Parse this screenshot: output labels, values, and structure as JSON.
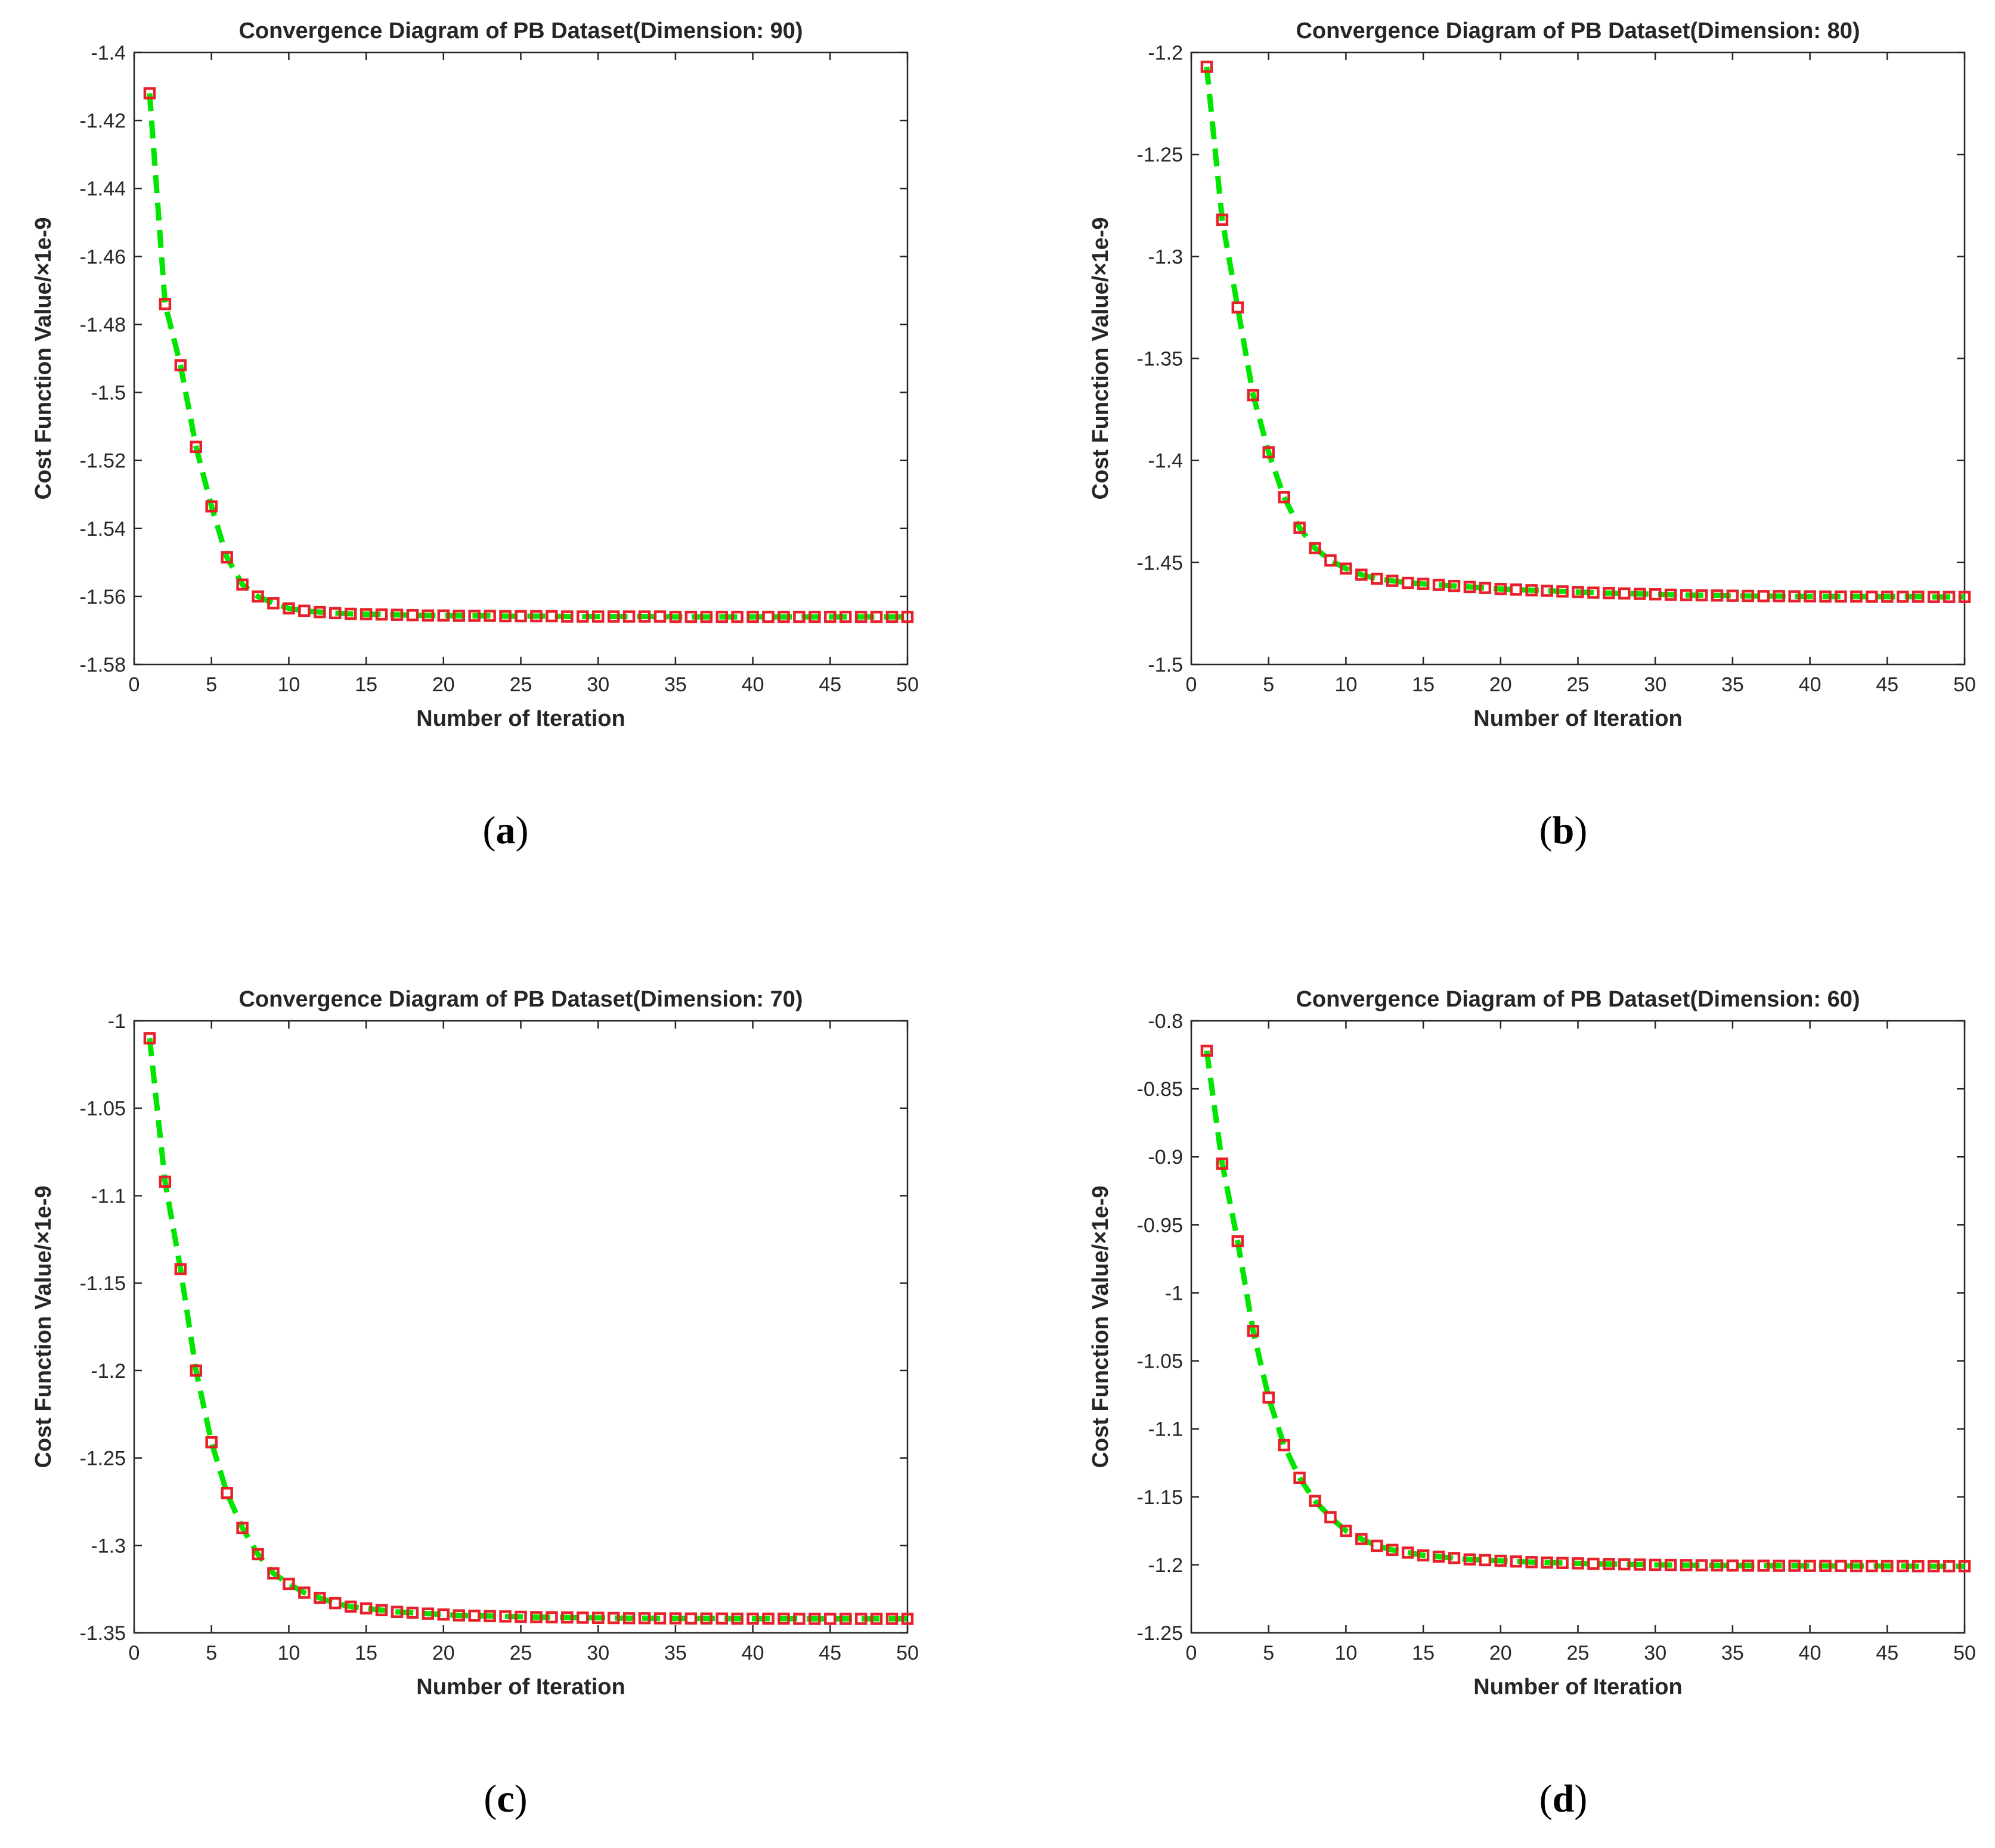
{
  "chart_data": [
    {
      "type": "line",
      "panel": "a",
      "caption_letter": "a",
      "title": "Convergence Diagram of PB Dataset(Dimension: 90)",
      "xlabel": "Number of Iteration",
      "ylabel": "Cost Function Value/×1e-9",
      "xlim": [
        0,
        50
      ],
      "ylim": [
        -1.58,
        -1.4
      ],
      "xticks": [
        0,
        5,
        10,
        15,
        20,
        25,
        30,
        35,
        40,
        45,
        50
      ],
      "yticks": [
        -1.58,
        -1.56,
        -1.54,
        -1.52,
        -1.5,
        -1.48,
        -1.46,
        -1.44,
        -1.42,
        -1.4
      ],
      "x": [
        1,
        2,
        3,
        4,
        5,
        6,
        7,
        8,
        9,
        10,
        11,
        12,
        13,
        14,
        15,
        16,
        17,
        18,
        19,
        20,
        21,
        22,
        23,
        24,
        25,
        26,
        27,
        28,
        29,
        30,
        31,
        32,
        33,
        34,
        35,
        36,
        37,
        38,
        39,
        40,
        41,
        42,
        43,
        44,
        45,
        46,
        47,
        48,
        49,
        50
      ],
      "y": [
        -1.412,
        -1.474,
        -1.492,
        -1.516,
        -1.5335,
        -1.5485,
        -1.5565,
        -1.56,
        -1.562,
        -1.5635,
        -1.5642,
        -1.5646,
        -1.5649,
        -1.5651,
        -1.5652,
        -1.5653,
        -1.5654,
        -1.5655,
        -1.5656,
        -1.5656,
        -1.5657,
        -1.5657,
        -1.5657,
        -1.5658,
        -1.5658,
        -1.5658,
        -1.5658,
        -1.5659,
        -1.5659,
        -1.5659,
        -1.5659,
        -1.5659,
        -1.5659,
        -1.5659,
        -1.566,
        -1.566,
        -1.566,
        -1.566,
        -1.566,
        -1.566,
        -1.566,
        -1.566,
        -1.566,
        -1.566,
        -1.566,
        -1.566,
        -1.566,
        -1.566,
        -1.566,
        -1.566
      ]
    },
    {
      "type": "line",
      "panel": "b",
      "caption_letter": "b",
      "title": "Convergence Diagram of PB Dataset(Dimension: 80)",
      "xlabel": "Number of Iteration",
      "ylabel": "Cost Function Value/×1e-9",
      "xlim": [
        0,
        50
      ],
      "ylim": [
        -1.5,
        -1.2
      ],
      "xticks": [
        0,
        5,
        10,
        15,
        20,
        25,
        30,
        35,
        40,
        45,
        50
      ],
      "yticks": [
        -1.5,
        -1.45,
        -1.4,
        -1.35,
        -1.3,
        -1.25,
        -1.2
      ],
      "x": [
        1,
        2,
        3,
        4,
        5,
        6,
        7,
        8,
        9,
        10,
        11,
        12,
        13,
        14,
        15,
        16,
        17,
        18,
        19,
        20,
        21,
        22,
        23,
        24,
        25,
        26,
        27,
        28,
        29,
        30,
        31,
        32,
        33,
        34,
        35,
        36,
        37,
        38,
        39,
        40,
        41,
        42,
        43,
        44,
        45,
        46,
        47,
        48,
        49,
        50
      ],
      "y": [
        -1.207,
        -1.282,
        -1.325,
        -1.368,
        -1.396,
        -1.418,
        -1.433,
        -1.443,
        -1.449,
        -1.453,
        -1.456,
        -1.458,
        -1.459,
        -1.46,
        -1.4605,
        -1.461,
        -1.4615,
        -1.462,
        -1.4625,
        -1.463,
        -1.4633,
        -1.4636,
        -1.4639,
        -1.4642,
        -1.4645,
        -1.4648,
        -1.465,
        -1.4652,
        -1.4654,
        -1.4656,
        -1.4658,
        -1.466,
        -1.4661,
        -1.4662,
        -1.4663,
        -1.4664,
        -1.4665,
        -1.4665,
        -1.4666,
        -1.4666,
        -1.4667,
        -1.4667,
        -1.4667,
        -1.4668,
        -1.4668,
        -1.4668,
        -1.4668,
        -1.4669,
        -1.4669,
        -1.4669
      ]
    },
    {
      "type": "line",
      "panel": "c",
      "caption_letter": "c",
      "title": "Convergence Diagram of PB Dataset(Dimension: 70)",
      "xlabel": "Number of Iteration",
      "ylabel": "Cost Function Value/×1e-9",
      "xlim": [
        0,
        50
      ],
      "ylim": [
        -1.35,
        -1.0
      ],
      "xticks": [
        0,
        5,
        10,
        15,
        20,
        25,
        30,
        35,
        40,
        45,
        50
      ],
      "yticks": [
        -1.35,
        -1.3,
        -1.25,
        -1.2,
        -1.15,
        -1.1,
        -1.05,
        -1
      ],
      "x": [
        1,
        2,
        3,
        4,
        5,
        6,
        7,
        8,
        9,
        10,
        11,
        12,
        13,
        14,
        15,
        16,
        17,
        18,
        19,
        20,
        21,
        22,
        23,
        24,
        25,
        26,
        27,
        28,
        29,
        30,
        31,
        32,
        33,
        34,
        35,
        36,
        37,
        38,
        39,
        40,
        41,
        42,
        43,
        44,
        45,
        46,
        47,
        48,
        49,
        50
      ],
      "y": [
        -1.01,
        -1.092,
        -1.142,
        -1.2,
        -1.241,
        -1.27,
        -1.29,
        -1.305,
        -1.316,
        -1.322,
        -1.327,
        -1.33,
        -1.333,
        -1.335,
        -1.336,
        -1.337,
        -1.338,
        -1.3385,
        -1.339,
        -1.3395,
        -1.34,
        -1.3402,
        -1.3404,
        -1.3406,
        -1.3408,
        -1.341,
        -1.3411,
        -1.3412,
        -1.3413,
        -1.3414,
        -1.3415,
        -1.3416,
        -1.3416,
        -1.3417,
        -1.3417,
        -1.3418,
        -1.3418,
        -1.3418,
        -1.3419,
        -1.3419,
        -1.3419,
        -1.3419,
        -1.342,
        -1.342,
        -1.342,
        -1.342,
        -1.342,
        -1.342,
        -1.342,
        -1.342
      ]
    },
    {
      "type": "line",
      "panel": "d",
      "caption_letter": "d",
      "title": "Convergence Diagram of PB Dataset(Dimension: 60)",
      "xlabel": "Number of Iteration",
      "ylabel": "Cost Function Value/×1e-9",
      "xlim": [
        0,
        50
      ],
      "ylim": [
        -1.25,
        -0.8
      ],
      "xticks": [
        0,
        5,
        10,
        15,
        20,
        25,
        30,
        35,
        40,
        45,
        50
      ],
      "yticks": [
        -1.25,
        -1.2,
        -1.15,
        -1.1,
        -1.05,
        -1,
        -0.95,
        -0.9,
        -0.85,
        -0.8
      ],
      "x": [
        1,
        2,
        3,
        4,
        5,
        6,
        7,
        8,
        9,
        10,
        11,
        12,
        13,
        14,
        15,
        16,
        17,
        18,
        19,
        20,
        21,
        22,
        23,
        24,
        25,
        26,
        27,
        28,
        29,
        30,
        31,
        32,
        33,
        34,
        35,
        36,
        37,
        38,
        39,
        40,
        41,
        42,
        43,
        44,
        45,
        46,
        47,
        48,
        49,
        50
      ],
      "y": [
        -0.822,
        -0.905,
        -0.962,
        -1.028,
        -1.077,
        -1.112,
        -1.136,
        -1.153,
        -1.165,
        -1.175,
        -1.181,
        -1.186,
        -1.189,
        -1.191,
        -1.193,
        -1.194,
        -1.195,
        -1.196,
        -1.1965,
        -1.197,
        -1.1975,
        -1.198,
        -1.1983,
        -1.1986,
        -1.1989,
        -1.1992,
        -1.1994,
        -1.1996,
        -1.1998,
        -1.2,
        -1.2001,
        -1.2002,
        -1.2003,
        -1.2004,
        -1.2005,
        -1.2006,
        -1.2006,
        -1.2007,
        -1.2007,
        -1.2008,
        -1.2008,
        -1.2008,
        -1.2009,
        -1.2009,
        -1.2009,
        -1.2009,
        -1.201,
        -1.201,
        -1.201,
        -1.201
      ]
    }
  ],
  "colors": {
    "line": "#00e600",
    "marker": "#e8202a",
    "axis": "#262626",
    "tick": "#262626"
  }
}
